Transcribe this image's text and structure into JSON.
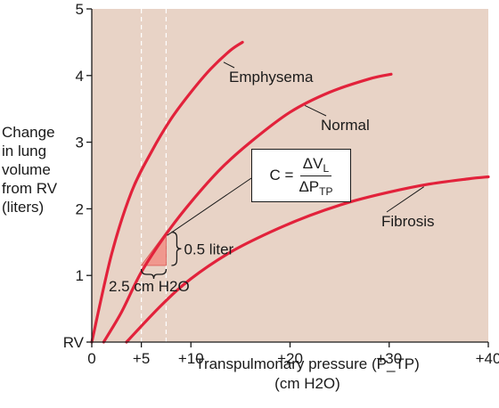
{
  "chart_data": {
    "type": "line",
    "title": "",
    "xlabel": "Transpulmonary pressure (P_TP)",
    "xlabel_units": "(cm H2O)",
    "ylabel_lines": [
      "Change",
      "in lung",
      "volume",
      "from RV",
      "(liters)"
    ],
    "xlim": [
      0,
      40
    ],
    "ylim": [
      0,
      5
    ],
    "x_ticks": [
      0,
      5,
      10,
      20,
      30,
      40
    ],
    "x_tick_labels": [
      "0",
      "+5",
      "+10",
      "+20",
      "+30",
      "+40"
    ],
    "y_ticks": [
      0,
      1,
      2,
      3,
      4,
      5
    ],
    "y_tick_labels": [
      "RV",
      "1",
      "2",
      "3",
      "4",
      "5"
    ],
    "grid": false,
    "background_color": "#e8d3c6",
    "curve_color": "#e2223b",
    "series": [
      {
        "name": "Emphysema",
        "x": [
          0,
          2,
          4,
          6,
          8,
          10,
          12,
          14,
          15.2
        ],
        "y": [
          0,
          1.32,
          2.25,
          2.85,
          3.35,
          3.75,
          4.1,
          4.38,
          4.5
        ]
      },
      {
        "name": "Normal",
        "x": [
          1.2,
          3,
          5,
          7.5,
          10,
          13,
          16,
          20,
          24,
          28,
          30.2
        ],
        "y": [
          0,
          0.45,
          1.05,
          1.62,
          2.1,
          2.6,
          3.0,
          3.45,
          3.75,
          3.95,
          4.02
        ]
      },
      {
        "name": "Fibrosis",
        "x": [
          3.5,
          7,
          10,
          14,
          18,
          22,
          26,
          30,
          34,
          38,
          40
        ],
        "y": [
          0,
          0.55,
          0.95,
          1.35,
          1.65,
          1.9,
          2.1,
          2.25,
          2.37,
          2.45,
          2.48
        ]
      }
    ],
    "dashed_guides_x": [
      5,
      7.5
    ],
    "compliance_triangle": {
      "x": [
        5,
        7.5
      ],
      "y": [
        1.15,
        1.65
      ]
    },
    "annotations": {
      "volume_change": "0.5 liter",
      "pressure_change": "2.5 cm H2O",
      "formula_lhs": "C =",
      "formula_num": "ΔV",
      "formula_num_sub": "L",
      "formula_den": "ΔP",
      "formula_den_sub": "TP"
    }
  }
}
